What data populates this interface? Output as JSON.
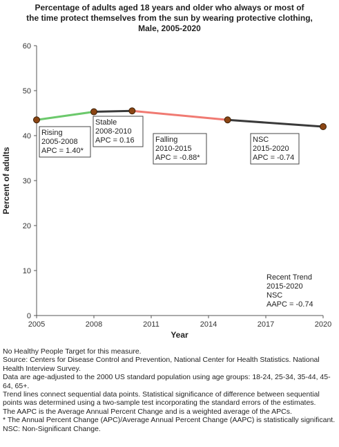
{
  "chart_data": {
    "type": "line",
    "title_lines": [
      "Percentage of adults aged 18 years and older who always or most of",
      "the time protect themselves from the sun by wearing protective clothing,",
      "Male,  2005-2020"
    ],
    "xlabel": "Year",
    "ylabel": "Percent of adults",
    "xlim": [
      2005,
      2020
    ],
    "ylim": [
      0,
      60
    ],
    "x_ticks": [
      "2005",
      "2008",
      "2011",
      "2014",
      "2017",
      "2020"
    ],
    "y_ticks": [
      "0",
      "10",
      "20",
      "30",
      "40",
      "50",
      "60"
    ],
    "grid": false,
    "points": [
      {
        "x": 2005,
        "y": 43.5
      },
      {
        "x": 2008,
        "y": 45.3
      },
      {
        "x": 2010,
        "y": 45.5
      },
      {
        "x": 2015,
        "y": 43.5
      },
      {
        "x": 2020,
        "y": 42.0
      }
    ],
    "segments": [
      {
        "from": 0,
        "to": 1,
        "color": "#6cc96c"
      },
      {
        "from": 1,
        "to": 2,
        "color": "#3a3a3a"
      },
      {
        "from": 2,
        "to": 3,
        "color": "#f07a72"
      },
      {
        "from": 3,
        "to": 4,
        "color": "#3a3a3a"
      }
    ],
    "annotations": [
      {
        "name": "annotation-rising",
        "boxed": true,
        "lines": [
          "Rising",
          "2005-2008",
          "APC =  1.40*"
        ]
      },
      {
        "name": "annotation-stable",
        "boxed": true,
        "lines": [
          "Stable",
          "2008-2010",
          "APC =  0.16"
        ]
      },
      {
        "name": "annotation-falling",
        "boxed": true,
        "lines": [
          "Falling",
          "2010-2015",
          "APC = -0.88*"
        ]
      },
      {
        "name": "annotation-nsc",
        "boxed": true,
        "lines": [
          "NSC",
          "2015-2020",
          "APC = -0.74"
        ]
      },
      {
        "name": "annotation-recent-trend",
        "boxed": false,
        "lines": [
          "Recent Trend",
          "2015-2020",
          "NSC",
          "AAPC = -0.74"
        ]
      }
    ],
    "colors": {
      "marker_fill": "#8b4513",
      "marker_stroke": "#3a2008",
      "axis": "#555555"
    }
  },
  "notes": [
    "No Healthy People Target for this measure.",
    "Source: Centers for Disease Control and Prevention, National Center for Health Statistics. National Health Interview Survey.",
    "Data are age-adjusted to the 2000 US standard population using age groups: 18-24, 25-34, 35-44, 45-64, 65+.",
    "Trend lines connect sequential data points. Statistical significance of difference between sequential points was determined using a two-sample test incorporating the standard errors of the estimates.",
    "The AAPC is the Average Annual Percent Change and is a weighted average of the APCs.",
    "* The Annual Percent Change (APC)/Average Annual Percent Change (AAPC) is statistically significant.",
    "NSC: Non-Significant Change."
  ]
}
